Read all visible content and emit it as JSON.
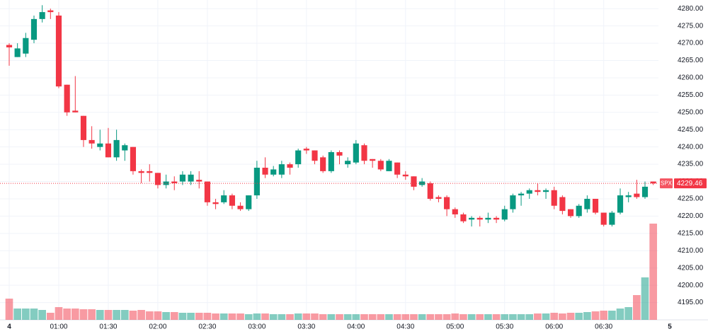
{
  "chart_data": {
    "type": "candlestick",
    "symbol": "SPX",
    "last_price": 4229.46,
    "up_color": "#089981",
    "down_color": "#f23645",
    "open": [
      4269.5,
      4266,
      4267,
      4271,
      4277,
      4279.5,
      4278,
      4258,
      4250.5,
      4249,
      4242,
      4240,
      4241,
      4237,
      4239,
      4240,
      4233,
      4233,
      4232.5,
      4229,
      4230,
      4230,
      4230,
      4230.5,
      4230,
      4224,
      4224,
      4226,
      4223,
      4222,
      4226,
      4234,
      4232,
      4232,
      4235,
      4235,
      4239.5,
      4239,
      4237,
      4233,
      4238.5,
      4235,
      4235.5,
      4240.5,
      4236.5,
      4236,
      4233,
      4235.5,
      4232,
      4231.5,
      4229,
      4229.5,
      4225.5,
      4225.5,
      4222,
      4220.5,
      4219,
      4219.5,
      4219,
      4219.5,
      4219,
      4222,
      4226,
      4226.5,
      4227.5,
      4227,
      4227.5,
      4225.5,
      4222,
      4220,
      4222,
      4225,
      4221,
      4217.5,
      4221,
      4225.5,
      4226.5,
      4225.5,
      4230
    ],
    "high": [
      4270,
      4270,
      4273,
      4278,
      4281,
      4280,
      4279,
      4258,
      4260.5,
      4249,
      4246,
      4245,
      4245.5,
      4245,
      4241,
      4240,
      4233.5,
      4235,
      4232.5,
      4232,
      4231.5,
      4233,
      4233,
      4233,
      4230,
      4225,
      4227.5,
      4226.5,
      4224,
      4226,
      4236,
      4237,
      4234.5,
      4236,
      4235.5,
      4239.5,
      4240,
      4239,
      4237.5,
      4239,
      4239,
      4237,
      4242,
      4241,
      4236.5,
      4236.5,
      4236.5,
      4235.5,
      4233,
      4231.5,
      4231,
      4230,
      4226,
      4226,
      4222.5,
      4221,
      4220,
      4220,
      4221,
      4220,
      4223,
      4226.5,
      4227,
      4228,
      4229.5,
      4228,
      4228.5,
      4226,
      4222,
      4223.5,
      4226,
      4225,
      4221,
      4221.5,
      4228,
      4227,
      4230.5,
      4230,
      4230
    ],
    "low": [
      4263.5,
      4266,
      4266,
      4270,
      4276,
      4277,
      4257,
      4249,
      4250,
      4240,
      4239.5,
      4239,
      4237,
      4236,
      4236,
      4232,
      4229.5,
      4230,
      4228,
      4228,
      4227.5,
      4229,
      4229,
      4228,
      4223,
      4222,
      4223.5,
      4222,
      4221.5,
      4221.5,
      4225,
      4231,
      4231.5,
      4231,
      4232,
      4234,
      4238,
      4235,
      4232.5,
      4232.5,
      4235,
      4234,
      4235,
      4235,
      4234,
      4233,
      4233,
      4231,
      4230.5,
      4227.5,
      4228.5,
      4224.5,
      4224,
      4220,
      4219.5,
      4218,
      4217,
      4217,
      4218,
      4218,
      4218.5,
      4221,
      4223,
      4225,
      4226,
      4225,
      4222,
      4220.5,
      4219.5,
      4219.5,
      4221,
      4220.5,
      4217,
      4217,
      4220.5,
      4224,
      4225,
      4225,
      4229
    ],
    "close": [
      4268.8,
      4268.5,
      4271.5,
      4277,
      4279,
      4279,
      4257.5,
      4250,
      4250,
      4242,
      4241,
      4241,
      4237,
      4242,
      4240.5,
      4233,
      4232.5,
      4232.5,
      4229,
      4230,
      4229.5,
      4232,
      4232,
      4230,
      4224,
      4223.5,
      4226,
      4223,
      4222,
      4226,
      4234,
      4232,
      4233.5,
      4235,
      4234,
      4239,
      4239,
      4236,
      4233,
      4238.5,
      4237.5,
      4236,
      4241,
      4236,
      4236,
      4233.5,
      4236,
      4232,
      4231.5,
      4228.5,
      4230,
      4225,
      4225,
      4222,
      4220.5,
      4218.5,
      4219.5,
      4219,
      4219.5,
      4219,
      4222,
      4226,
      4226.5,
      4227.5,
      4227,
      4227.5,
      4223,
      4221.5,
      4220,
      4223,
      4225,
      4221,
      4217.5,
      4221,
      4226,
      4226,
      4225.5,
      4228.5,
      4229.46
    ],
    "volume": [
      30,
      16,
      16,
      16,
      14,
      10,
      18,
      16,
      16,
      15,
      15,
      14,
      14,
      14,
      14,
      13,
      14,
      12,
      12,
      11,
      11,
      10,
      10,
      10,
      10,
      9,
      9,
      9,
      9,
      8,
      9,
      9,
      8,
      8,
      8,
      9,
      9,
      9,
      8,
      8,
      8,
      8,
      8,
      8,
      8,
      8,
      8,
      8,
      8,
      8,
      8,
      8,
      8,
      8,
      9,
      8,
      8,
      8,
      8,
      8,
      8,
      8,
      8,
      8,
      9,
      9,
      10,
      9,
      10,
      10,
      11,
      12,
      13,
      13,
      16,
      18,
      35,
      60,
      136
    ],
    "xlim": [
      0,
      80
    ],
    "xticks": [
      {
        "value": 0,
        "label": "4"
      },
      {
        "value": 6,
        "label": "01:00"
      },
      {
        "value": 12,
        "label": "01:30"
      },
      {
        "value": 18,
        "label": "02:00"
      },
      {
        "value": 24,
        "label": "02:30"
      },
      {
        "value": 30,
        "label": "03:00"
      },
      {
        "value": 36,
        "label": "03:30"
      },
      {
        "value": 42,
        "label": "04:00"
      },
      {
        "value": 48,
        "label": "04:30"
      },
      {
        "value": 54,
        "label": "05:00"
      },
      {
        "value": 60,
        "label": "05:30"
      },
      {
        "value": 66,
        "label": "06:00"
      },
      {
        "value": 72,
        "label": "06:30"
      },
      {
        "value": 80,
        "label": "5"
      }
    ],
    "ylim": [
      4190,
      4282.5
    ],
    "yticks": [
      {
        "value": 4195,
        "label": "4195.00"
      },
      {
        "value": 4200,
        "label": "4200.00"
      },
      {
        "value": 4205,
        "label": "4205.00"
      },
      {
        "value": 4210,
        "label": "4210.00"
      },
      {
        "value": 4215,
        "label": "4215.00"
      },
      {
        "value": 4220,
        "label": "4220.00"
      },
      {
        "value": 4225,
        "label": "4225.00"
      },
      {
        "value": 4230,
        "label": "4230.00"
      },
      {
        "value": 4235,
        "label": "4235.00"
      },
      {
        "value": 4240,
        "label": "4240.00"
      },
      {
        "value": 4245,
        "label": "4245.00"
      },
      {
        "value": 4250,
        "label": "4250.00"
      },
      {
        "value": 4255,
        "label": "4255.00"
      },
      {
        "value": 4260,
        "label": "4260.00"
      },
      {
        "value": 4265,
        "label": "4265.00"
      },
      {
        "value": 4270,
        "label": "4270.00"
      },
      {
        "value": 4275,
        "label": "4275.00"
      },
      {
        "value": 4280,
        "label": "4280.00"
      }
    ],
    "grid": true
  }
}
